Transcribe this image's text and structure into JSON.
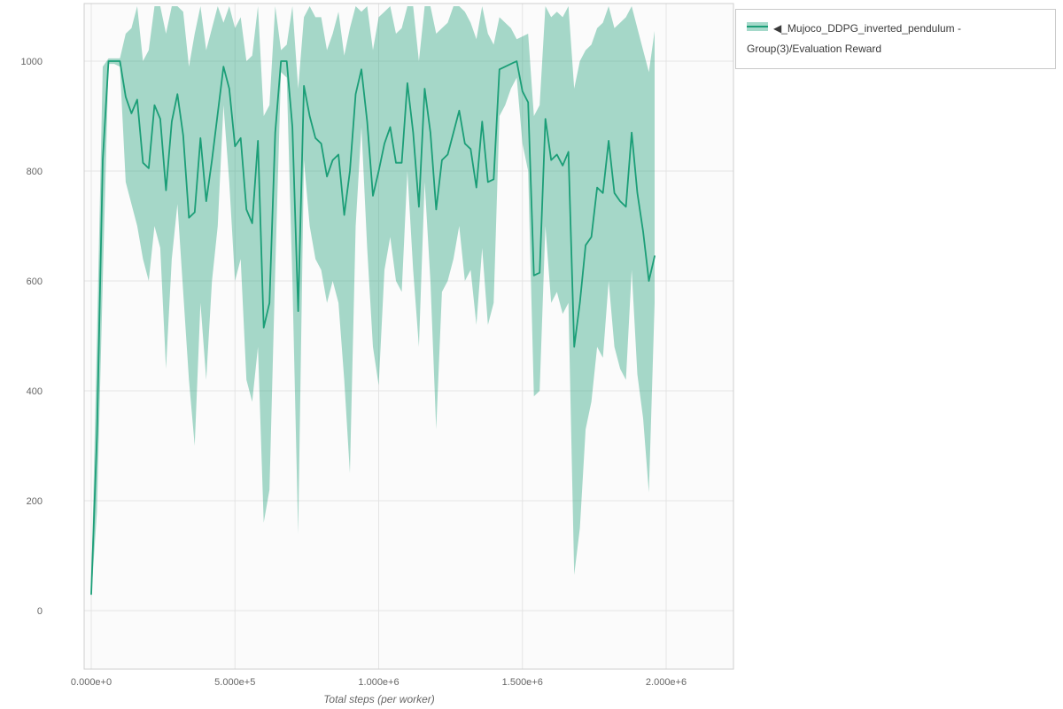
{
  "chart_data": {
    "type": "line",
    "title": "",
    "xlabel": "Total steps (per worker)",
    "ylabel": "",
    "grid": true,
    "legend_position": "top-right-outside",
    "x_ticks": [
      "0.000e+0",
      "5.000e+5",
      "1.000e+6",
      "1.500e+6",
      "2.000e+6"
    ],
    "x_tick_values": [
      0,
      500000,
      1000000,
      1500000,
      2000000
    ],
    "y_ticks": [
      0,
      200,
      400,
      600,
      800,
      1000
    ],
    "xlim": [
      -25000,
      2235000
    ],
    "ylim": [
      -106,
      1105
    ],
    "colors": {
      "line": "#1b9e77",
      "band": "#a5d9ca",
      "grid": "#e4e4e4",
      "border": "#cfcfcf",
      "tick_text": "#666666",
      "plot_bg": "#fbfbfb"
    },
    "legend": {
      "marker": "◀",
      "label": "_Mujoco_DDPG_inverted_pendulum - Group(3)/Evaluation Reward"
    },
    "series": [
      {
        "name": "_Mujoco_DDPG_inverted_pendulum - Group(3)/Evaluation Reward",
        "color": "#1b9e77",
        "x": [
          0,
          20000,
          40000,
          60000,
          80000,
          100000,
          120000,
          140000,
          160000,
          180000,
          200000,
          220000,
          240000,
          260000,
          280000,
          300000,
          320000,
          340000,
          360000,
          380000,
          400000,
          420000,
          440000,
          460000,
          480000,
          500000,
          520000,
          540000,
          560000,
          580000,
          600000,
          620000,
          640000,
          660000,
          680000,
          700000,
          720000,
          740000,
          760000,
          780000,
          800000,
          820000,
          840000,
          860000,
          880000,
          900000,
          920000,
          940000,
          960000,
          980000,
          1000000,
          1020000,
          1040000,
          1060000,
          1080000,
          1100000,
          1120000,
          1140000,
          1160000,
          1180000,
          1200000,
          1220000,
          1240000,
          1260000,
          1280000,
          1300000,
          1320000,
          1340000,
          1360000,
          1380000,
          1400000,
          1420000,
          1440000,
          1460000,
          1480000,
          1500000,
          1520000,
          1540000,
          1560000,
          1580000,
          1600000,
          1620000,
          1640000,
          1660000,
          1680000,
          1700000,
          1720000,
          1740000,
          1760000,
          1780000,
          1800000,
          1820000,
          1840000,
          1860000,
          1880000,
          1900000,
          1920000,
          1940000,
          1960000
        ],
        "mean": [
          30,
          320,
          820,
          1000,
          1000,
          1000,
          935,
          905,
          930,
          815,
          805,
          920,
          895,
          765,
          890,
          940,
          865,
          715,
          725,
          860,
          745,
          820,
          905,
          990,
          950,
          845,
          860,
          730,
          705,
          855,
          515,
          560,
          870,
          1000,
          1000,
          880,
          545,
          955,
          900,
          860,
          850,
          790,
          820,
          830,
          720,
          800,
          940,
          985,
          890,
          755,
          800,
          850,
          880,
          815,
          815,
          960,
          870,
          735,
          950,
          870,
          730,
          820,
          830,
          870,
          910,
          850,
          840,
          770,
          890,
          780,
          785,
          985,
          990,
          995,
          1000,
          945,
          925,
          610,
          615,
          895,
          820,
          830,
          810,
          835,
          480,
          560,
          665,
          680,
          770,
          760,
          855,
          760,
          745,
          735,
          870,
          760,
          690,
          600,
          645
        ],
        "lower": [
          25,
          180,
          600,
          995,
          995,
          990,
          780,
          740,
          700,
          640,
          600,
          700,
          660,
          440,
          640,
          740,
          580,
          420,
          300,
          560,
          420,
          600,
          700,
          920,
          780,
          600,
          640,
          420,
          380,
          480,
          160,
          220,
          620,
          980,
          970,
          600,
          140,
          820,
          700,
          640,
          620,
          560,
          600,
          560,
          420,
          250,
          700,
          880,
          660,
          480,
          410,
          620,
          680,
          600,
          580,
          800,
          620,
          480,
          780,
          600,
          330,
          580,
          600,
          640,
          700,
          600,
          620,
          520,
          660,
          520,
          560,
          900,
          920,
          950,
          970,
          850,
          800,
          390,
          400,
          700,
          560,
          580,
          540,
          560,
          65,
          150,
          330,
          380,
          480,
          460,
          600,
          480,
          440,
          420,
          620,
          430,
          350,
          215,
          560
        ],
        "upper": [
          40,
          500,
          990,
          1005,
          1005,
          1005,
          1050,
          1060,
          1100,
          1000,
          1020,
          1100,
          1100,
          1050,
          1100,
          1100,
          1090,
          990,
          1050,
          1100,
          1020,
          1060,
          1100,
          1070,
          1100,
          1060,
          1080,
          1000,
          1010,
          1100,
          900,
          920,
          1100,
          1020,
          1030,
          1100,
          950,
          1080,
          1100,
          1080,
          1080,
          1020,
          1050,
          1090,
          1010,
          1060,
          1100,
          1090,
          1100,
          1020,
          1080,
          1090,
          1100,
          1050,
          1060,
          1100,
          1100,
          1000,
          1100,
          1100,
          1050,
          1060,
          1070,
          1100,
          1100,
          1090,
          1070,
          1040,
          1100,
          1050,
          1030,
          1080,
          1070,
          1060,
          1040,
          1045,
          1050,
          900,
          920,
          1100,
          1080,
          1090,
          1080,
          1100,
          950,
          1000,
          1020,
          1030,
          1060,
          1070,
          1100,
          1060,
          1070,
          1080,
          1100,
          1060,
          1020,
          980,
          1055
        ]
      }
    ]
  }
}
